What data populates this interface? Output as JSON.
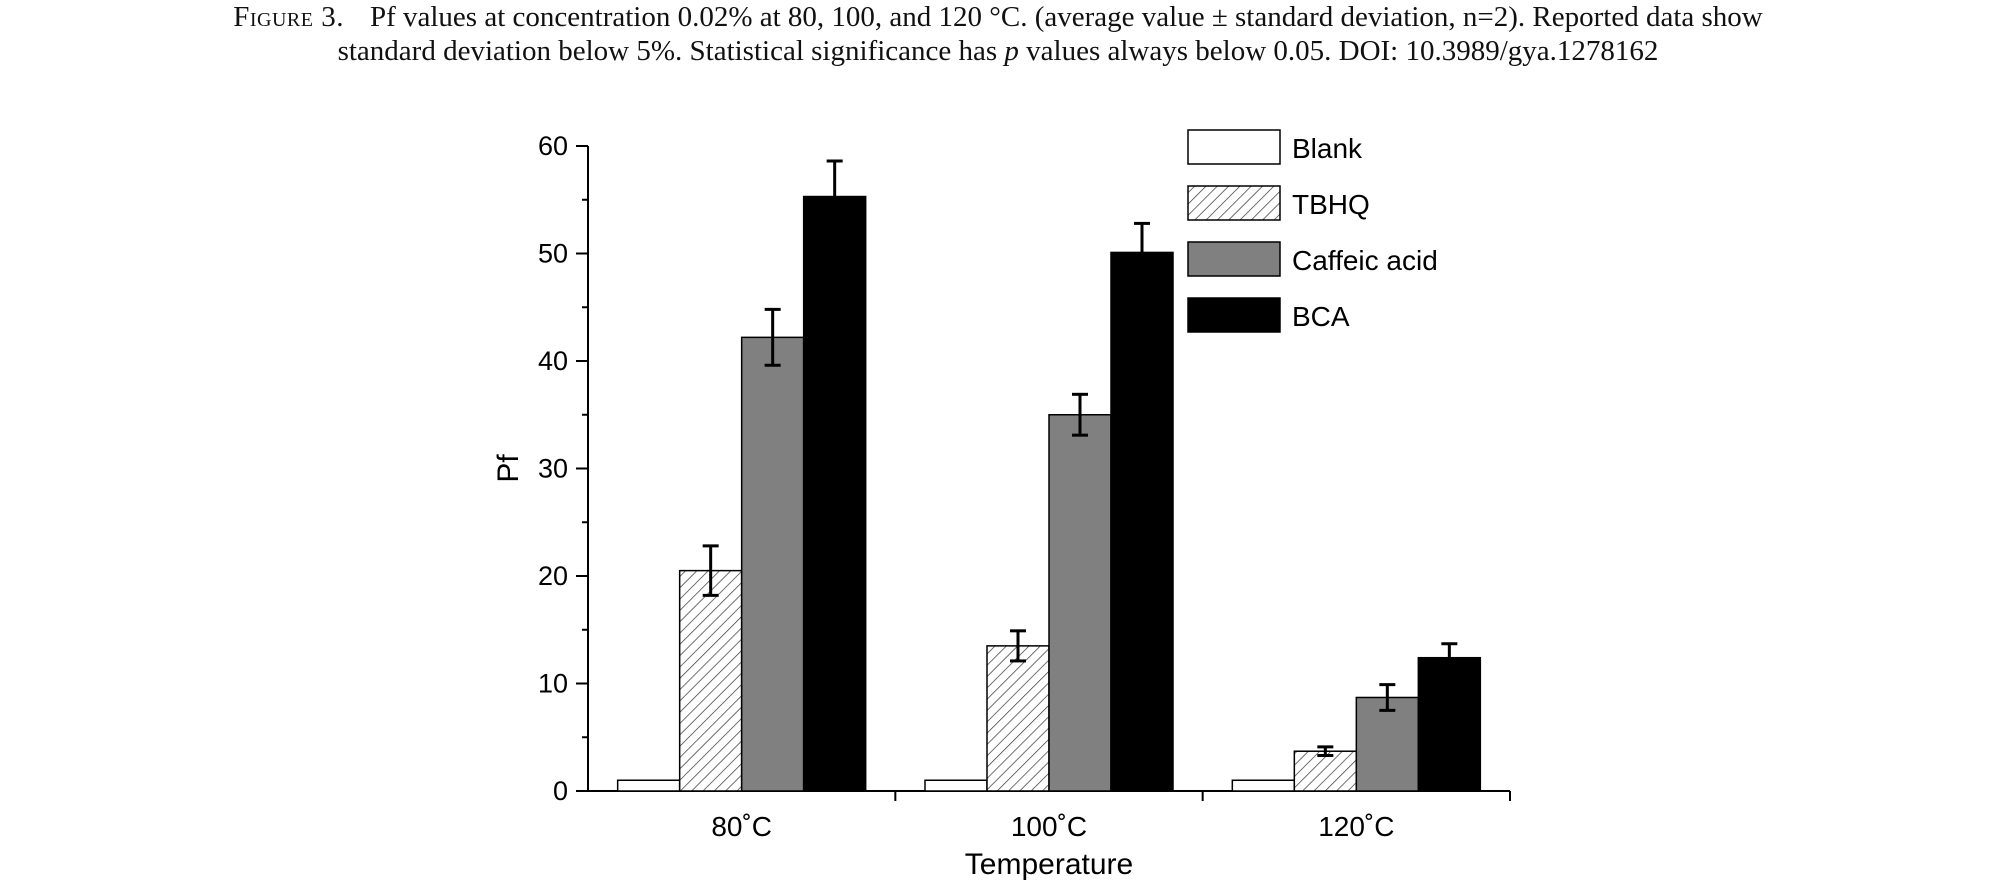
{
  "caption": {
    "label": "Figure 3.",
    "line1": "Pf values at concentration 0.02% at 80, 100, and 120 °C. (average value ± standard deviation, n=2). Reported data show",
    "line2_pre": "standard deviation below 5%. Statistical significance has ",
    "line2_italic": "p",
    "line2_post": " values always below 0.05. DOI: 10.3989/gya.1278162"
  },
  "chart_data": {
    "type": "bar",
    "title": "",
    "xlabel": "Temperature",
    "ylabel": "Pf",
    "ylim": [
      0,
      60
    ],
    "yticks": [
      "0",
      "10",
      "20",
      "30",
      "40",
      "50",
      "60"
    ],
    "categories": [
      "80˚C",
      "100˚C",
      "120˚C"
    ],
    "grid": false,
    "legend_position": "top-right",
    "series": [
      {
        "name": "Blank",
        "values": [
          1,
          1,
          1
        ],
        "errors": [
          0,
          0,
          0
        ],
        "fill": "#ffffff",
        "pattern": "none"
      },
      {
        "name": "TBHQ",
        "values": [
          20.5,
          13.5,
          3.7
        ],
        "errors": [
          2.3,
          1.4,
          0.4
        ],
        "fill": "#ffffff",
        "pattern": "hatch"
      },
      {
        "name": "Caffeic acid",
        "values": [
          42.2,
          35.0,
          8.7
        ],
        "errors": [
          2.6,
          1.9,
          1.2
        ],
        "fill": "#808080",
        "pattern": "none"
      },
      {
        "name": "BCA",
        "values": [
          55.3,
          50.1,
          12.4
        ],
        "errors": [
          3.3,
          2.7,
          1.3
        ],
        "fill": "#000000",
        "pattern": "none"
      }
    ]
  }
}
